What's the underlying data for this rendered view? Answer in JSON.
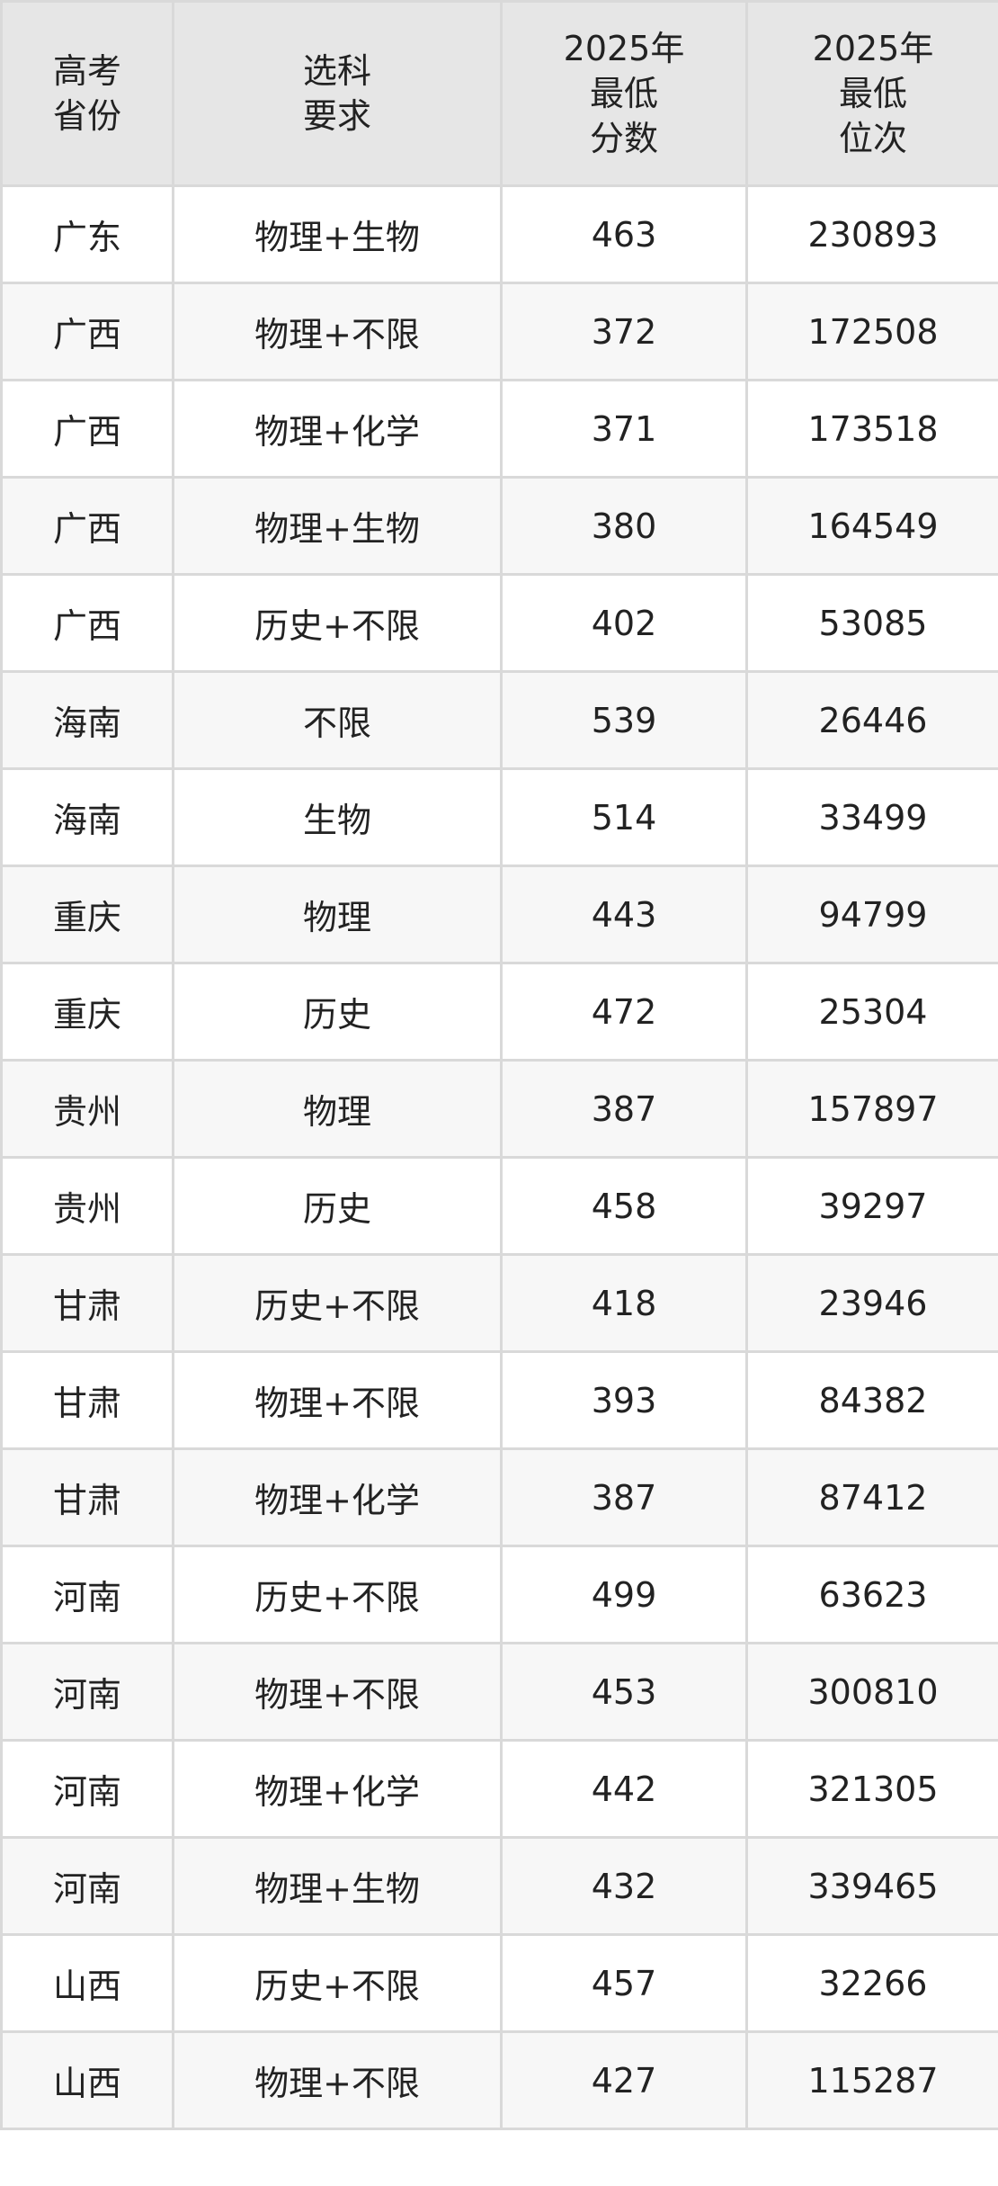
{
  "table": {
    "headers": [
      [
        "高考",
        "省份"
      ],
      [
        "选科",
        "要求"
      ],
      [
        "2025年",
        "最低",
        "分数"
      ],
      [
        "2025年",
        "最低",
        "位次"
      ]
    ],
    "rows": [
      [
        "广东",
        "物理+生物",
        "463",
        "230893"
      ],
      [
        "广西",
        "物理+不限",
        "372",
        "172508"
      ],
      [
        "广西",
        "物理+化学",
        "371",
        "173518"
      ],
      [
        "广西",
        "物理+生物",
        "380",
        "164549"
      ],
      [
        "广西",
        "历史+不限",
        "402",
        "53085"
      ],
      [
        "海南",
        "不限",
        "539",
        "26446"
      ],
      [
        "海南",
        "生物",
        "514",
        "33499"
      ],
      [
        "重庆",
        "物理",
        "443",
        "94799"
      ],
      [
        "重庆",
        "历史",
        "472",
        "25304"
      ],
      [
        "贵州",
        "物理",
        "387",
        "157897"
      ],
      [
        "贵州",
        "历史",
        "458",
        "39297"
      ],
      [
        "甘肃",
        "历史+不限",
        "418",
        "23946"
      ],
      [
        "甘肃",
        "物理+不限",
        "393",
        "84382"
      ],
      [
        "甘肃",
        "物理+化学",
        "387",
        "87412"
      ],
      [
        "河南",
        "历史+不限",
        "499",
        "63623"
      ],
      [
        "河南",
        "物理+不限",
        "453",
        "300810"
      ],
      [
        "河南",
        "物理+化学",
        "442",
        "321305"
      ],
      [
        "河南",
        "物理+生物",
        "432",
        "339465"
      ],
      [
        "山西",
        "历史+不限",
        "457",
        "32266"
      ],
      [
        "山西",
        "物理+不限",
        "427",
        "115287"
      ]
    ]
  },
  "colors": {
    "header_bg": "#e6e6e6",
    "border": "#d9d9d9",
    "alt_row": "#f7f7f7"
  }
}
